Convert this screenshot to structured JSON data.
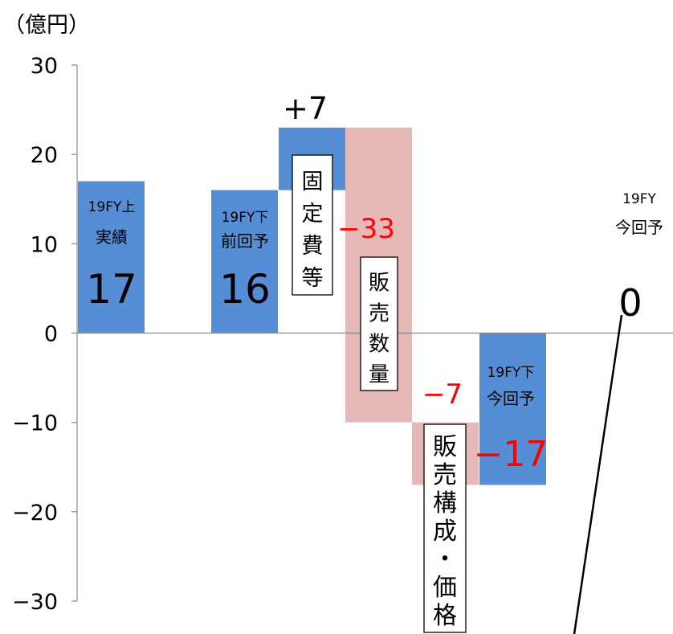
{
  "chart_data": {
    "type": "bar",
    "subtype": "waterfall",
    "unit_label": "（億円）",
    "ylim": [
      -30,
      30
    ],
    "yticks": [
      {
        "value": 30,
        "label": "30"
      },
      {
        "value": 20,
        "label": "20"
      },
      {
        "value": 10,
        "label": "10"
      },
      {
        "value": 0,
        "label": "0"
      },
      {
        "value": -10,
        "label": "−10"
      },
      {
        "value": -20,
        "label": "−20"
      },
      {
        "value": -30,
        "label": "−30"
      }
    ],
    "grid": false,
    "bars": [
      {
        "name": "19FY上 実績",
        "category_lines": [
          "19FY上",
          "実績"
        ],
        "value_label": "17",
        "from": 0,
        "to": 17,
        "kind": "total",
        "color": "#558ed5"
      },
      {
        "name": "19FY下 前回予",
        "category_lines": [
          "19FY下",
          "前回予"
        ],
        "value_label": "16",
        "from": 0,
        "to": 16,
        "kind": "total",
        "color": "#558ed5"
      },
      {
        "name": "固定費等",
        "category_lines": [
          "固",
          "定",
          "費",
          "等"
        ],
        "value_label": "+7",
        "from": 16,
        "to": 23,
        "kind": "increase",
        "color": "#558ed5"
      },
      {
        "name": "販売数量",
        "category_lines": [
          "販",
          "売",
          "数",
          "量"
        ],
        "value_label": "−33",
        "from": 23,
        "to": -10,
        "kind": "decrease",
        "color": "#e6b9b8"
      },
      {
        "name": "販売構成・価格",
        "category_lines": [
          "販",
          "売",
          "構",
          "成",
          "・",
          "価",
          "格"
        ],
        "value_label": "−7",
        "from": -10,
        "to": -17,
        "kind": "decrease",
        "color": "#e6b9b8"
      },
      {
        "name": "19FY下 今回予",
        "category_lines": [
          "19FY下",
          "今回予"
        ],
        "value_label": "−17",
        "from": 0,
        "to": -17,
        "kind": "total",
        "color": "#558ed5"
      },
      {
        "name": "19FY 今回予",
        "category_lines": [
          "19FY",
          "今回予"
        ],
        "value_label": "0",
        "from": 0,
        "to": 0,
        "kind": "total",
        "color": "#558ed5"
      }
    ],
    "colors": {
      "total": "#558ed5",
      "decrease": "#e6b9b8",
      "negative_label": "#ff0000",
      "text": "#000000",
      "axis": "#888888"
    }
  }
}
